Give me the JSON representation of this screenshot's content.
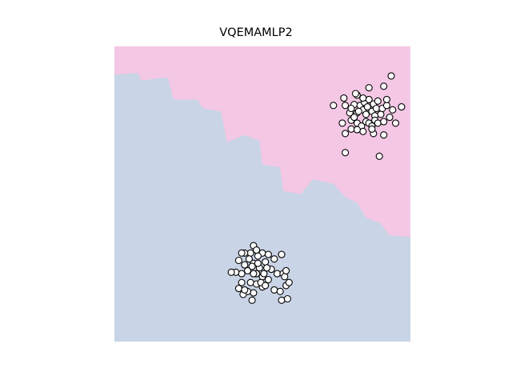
{
  "chart_data": {
    "type": "scatter",
    "title": "VQEMAMLP2",
    "xlabel": "",
    "ylabel": "",
    "xlim": [
      0,
      1
    ],
    "ylim": [
      0,
      1
    ],
    "axes_visible": false,
    "grid": false,
    "legend": "none",
    "colors": {
      "region_top": "#f4c7e4",
      "region_bottom": "#c9d4e6",
      "marker_edge": "#000000",
      "marker_face": "#ffffff"
    },
    "decision_boundary": [
      [
        0.0,
        0.905
      ],
      [
        0.08,
        0.91
      ],
      [
        0.09,
        0.885
      ],
      [
        0.18,
        0.895
      ],
      [
        0.2,
        0.82
      ],
      [
        0.28,
        0.82
      ],
      [
        0.3,
        0.79
      ],
      [
        0.36,
        0.78
      ],
      [
        0.38,
        0.675
      ],
      [
        0.44,
        0.7
      ],
      [
        0.49,
        0.68
      ],
      [
        0.5,
        0.6
      ],
      [
        0.56,
        0.59
      ],
      [
        0.57,
        0.51
      ],
      [
        0.63,
        0.5
      ],
      [
        0.67,
        0.55
      ],
      [
        0.74,
        0.535
      ],
      [
        0.78,
        0.49
      ],
      [
        0.82,
        0.47
      ],
      [
        0.85,
        0.42
      ],
      [
        0.9,
        0.4
      ],
      [
        0.93,
        0.36
      ],
      [
        1.0,
        0.355
      ]
    ],
    "clusters": [
      {
        "points": [
          [
            0.81,
            0.803
          ],
          [
            0.82,
            0.775
          ],
          [
            0.83,
            0.8
          ],
          [
            0.84,
            0.785
          ],
          [
            0.845,
            0.81
          ],
          [
            0.85,
            0.77
          ],
          [
            0.855,
            0.795
          ],
          [
            0.86,
            0.82
          ],
          [
            0.87,
            0.78
          ],
          [
            0.875,
            0.805
          ],
          [
            0.88,
            0.765
          ],
          [
            0.885,
            0.79
          ],
          [
            0.89,
            0.815
          ],
          [
            0.795,
            0.775
          ],
          [
            0.8,
            0.75
          ],
          [
            0.81,
            0.76
          ],
          [
            0.82,
            0.74
          ],
          [
            0.835,
            0.73
          ],
          [
            0.85,
            0.745
          ],
          [
            0.86,
            0.74
          ],
          [
            0.87,
            0.73
          ],
          [
            0.88,
            0.75
          ],
          [
            0.89,
            0.74
          ],
          [
            0.9,
            0.77
          ],
          [
            0.905,
            0.79
          ],
          [
            0.91,
            0.745
          ],
          [
            0.92,
            0.8
          ],
          [
            0.93,
            0.76
          ],
          [
            0.94,
            0.785
          ],
          [
            0.84,
            0.825
          ],
          [
            0.8,
            0.72
          ],
          [
            0.78,
            0.705
          ],
          [
            0.77,
            0.74
          ],
          [
            0.78,
            0.8
          ],
          [
            0.775,
            0.825
          ],
          [
            0.74,
            0.8
          ],
          [
            0.78,
            0.64
          ],
          [
            0.84,
            0.712
          ],
          [
            0.875,
            0.705
          ],
          [
            0.91,
            0.7
          ],
          [
            0.82,
            0.835
          ],
          [
            0.86,
            0.86
          ],
          [
            0.92,
            0.82
          ],
          [
            0.95,
            0.74
          ],
          [
            0.97,
            0.795
          ],
          [
            0.82,
            0.718
          ],
          [
            0.825,
            0.78
          ],
          [
            0.895,
            0.628
          ],
          [
            0.815,
            0.84
          ],
          [
            0.91,
            0.865
          ],
          [
            0.935,
            0.9
          ],
          [
            0.87,
            0.72
          ],
          [
            0.8,
            0.79
          ]
        ]
      },
      {
        "points": [
          [
            0.47,
            0.325
          ],
          [
            0.46,
            0.3
          ],
          [
            0.44,
            0.3
          ],
          [
            0.5,
            0.3
          ],
          [
            0.52,
            0.295
          ],
          [
            0.54,
            0.28
          ],
          [
            0.51,
            0.27
          ],
          [
            0.49,
            0.25
          ],
          [
            0.53,
            0.245
          ],
          [
            0.47,
            0.265
          ],
          [
            0.45,
            0.24
          ],
          [
            0.48,
            0.23
          ],
          [
            0.5,
            0.22
          ],
          [
            0.52,
            0.21
          ],
          [
            0.55,
            0.23
          ],
          [
            0.46,
            0.2
          ],
          [
            0.48,
            0.195
          ],
          [
            0.5,
            0.185
          ],
          [
            0.47,
            0.165
          ],
          [
            0.45,
            0.17
          ],
          [
            0.43,
            0.2
          ],
          [
            0.44,
            0.26
          ],
          [
            0.42,
            0.275
          ],
          [
            0.455,
            0.28
          ],
          [
            0.485,
            0.29
          ],
          [
            0.495,
            0.2
          ],
          [
            0.515,
            0.25
          ],
          [
            0.43,
            0.23
          ],
          [
            0.42,
            0.18
          ],
          [
            0.435,
            0.16
          ],
          [
            0.48,
            0.31
          ],
          [
            0.43,
            0.3
          ],
          [
            0.565,
            0.295
          ],
          [
            0.57,
            0.23
          ],
          [
            0.575,
            0.22
          ],
          [
            0.41,
            0.235
          ],
          [
            0.395,
            0.235
          ],
          [
            0.465,
            0.255
          ],
          [
            0.505,
            0.23
          ],
          [
            0.51,
            0.19
          ],
          [
            0.44,
            0.175
          ],
          [
            0.485,
            0.265
          ],
          [
            0.58,
            0.19
          ],
          [
            0.54,
            0.175
          ],
          [
            0.56,
            0.17
          ],
          [
            0.59,
            0.2
          ],
          [
            0.58,
            0.24
          ],
          [
            0.465,
            0.14
          ],
          [
            0.565,
            0.14
          ],
          [
            0.585,
            0.145
          ],
          [
            0.47,
            0.23
          ]
        ]
      }
    ]
  }
}
